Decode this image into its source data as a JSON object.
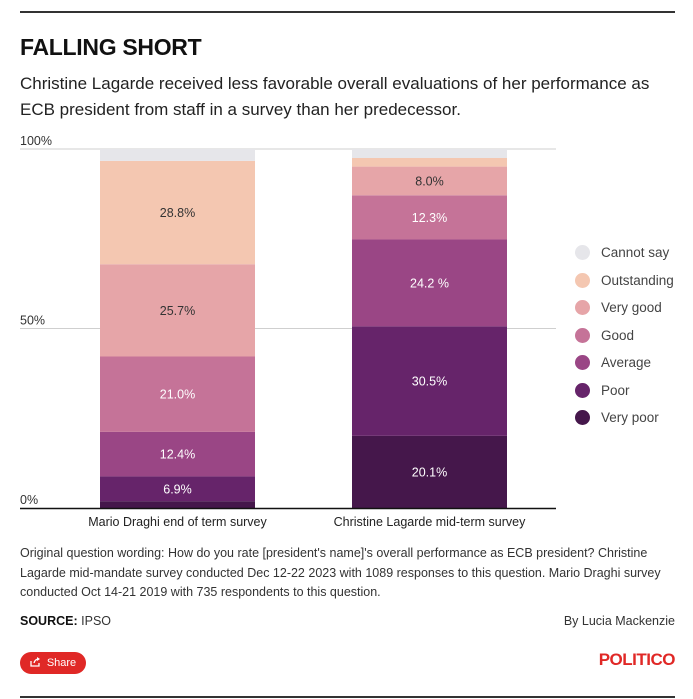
{
  "headline": "FALLING SHORT",
  "dek": "Christine Lagarde received less favorable overall evaluations of her performance as ECB president from staff in a survey than her predecessor.",
  "chart_data": {
    "type": "bar",
    "stacked": true,
    "categories": [
      "Mario Draghi end of term survey",
      "Christine Lagarde mid-term survey"
    ],
    "y_ticks": [
      "100%",
      "50%",
      "0%"
    ],
    "ylim": [
      0,
      100
    ],
    "grid": true,
    "legend_position": "right",
    "series": [
      {
        "name": "Very poor",
        "color": "#45174b",
        "values": [
          1.9,
          20.1
        ],
        "labels": [
          "",
          "20.1%"
        ]
      },
      {
        "name": "Poor",
        "color": "#66246a",
        "values": [
          6.9,
          30.5
        ],
        "labels": [
          "6.9%",
          "30.5%"
        ]
      },
      {
        "name": "Average",
        "color": "#9a4685",
        "values": [
          12.4,
          24.2
        ],
        "labels": [
          "12.4%",
          "24.2 %"
        ]
      },
      {
        "name": "Good",
        "color": "#c57398",
        "values": [
          21.0,
          12.3
        ],
        "labels": [
          "21.0%",
          "12.3%"
        ]
      },
      {
        "name": "Very good",
        "color": "#e6a5a8",
        "values": [
          25.7,
          8.0
        ],
        "labels": [
          "25.7%",
          "8.0%"
        ]
      },
      {
        "name": "Outstanding",
        "color": "#f4c7b1",
        "values": [
          28.8,
          2.4
        ],
        "labels": [
          "28.8%",
          ""
        ]
      },
      {
        "name": "Cannot say",
        "color": "#e6e6ea",
        "values": [
          3.3,
          2.5
        ],
        "labels": [
          "",
          ""
        ]
      }
    ]
  },
  "note": "Original question wording: How do you rate [president's name]'s overall performance as ECB president? Christine Lagarde mid-mandate survey conducted Dec 12-22 2023 with 1089 responses to this question. Mario Draghi survey conducted Oct 14-21 2019 with 735 respondents to this question.",
  "source": {
    "label": "SOURCE:",
    "value": "IPSO"
  },
  "byline": "By Lucia Mackenzie",
  "share_label": "Share",
  "logo_text": "POLITICO",
  "colors": {
    "accent": "#e02826"
  }
}
